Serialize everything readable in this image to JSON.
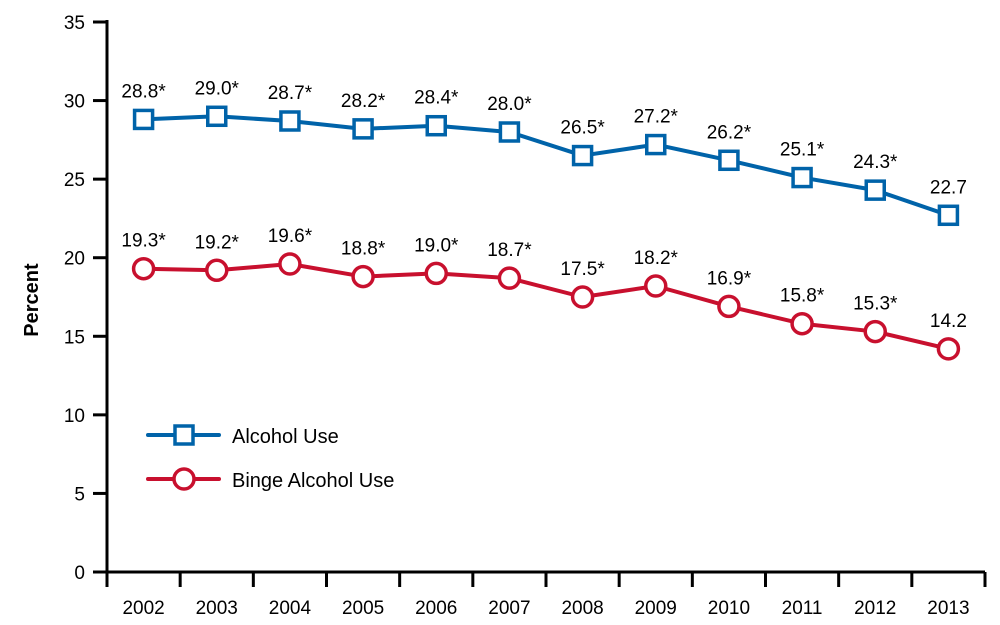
{
  "chart_data": {
    "type": "line",
    "title": "",
    "xlabel": "",
    "ylabel": "Percent",
    "ylim": [
      0,
      35
    ],
    "yticks": [
      0,
      5,
      10,
      15,
      20,
      25,
      30,
      35
    ],
    "grid": false,
    "legend_position": "lower-left",
    "categories": [
      "2002",
      "2003",
      "2004",
      "2005",
      "2006",
      "2007",
      "2008",
      "2009",
      "2010",
      "2011",
      "2012",
      "2013"
    ],
    "series": [
      {
        "name": "Alcohol Use",
        "color": "#0063a9",
        "marker": "square",
        "values": [
          28.8,
          29.0,
          28.7,
          28.2,
          28.4,
          28.0,
          26.5,
          27.2,
          26.2,
          25.1,
          24.3,
          22.7
        ],
        "labels": [
          "28.8*",
          "29.0*",
          "28.7*",
          "28.2*",
          "28.4*",
          "28.0*",
          "26.5*",
          "27.2*",
          "26.2*",
          "25.1*",
          "24.3*",
          "22.7"
        ]
      },
      {
        "name": "Binge Alcohol Use",
        "color": "#c8102e",
        "marker": "circle",
        "values": [
          19.3,
          19.2,
          19.6,
          18.8,
          19.0,
          18.7,
          17.5,
          18.2,
          16.9,
          15.8,
          15.3,
          14.2
        ],
        "labels": [
          "19.3*",
          "19.2*",
          "19.6*",
          "18.8*",
          "19.0*",
          "18.7*",
          "17.5*",
          "18.2*",
          "16.9*",
          "15.8*",
          "15.3*",
          "14.2"
        ]
      }
    ]
  }
}
